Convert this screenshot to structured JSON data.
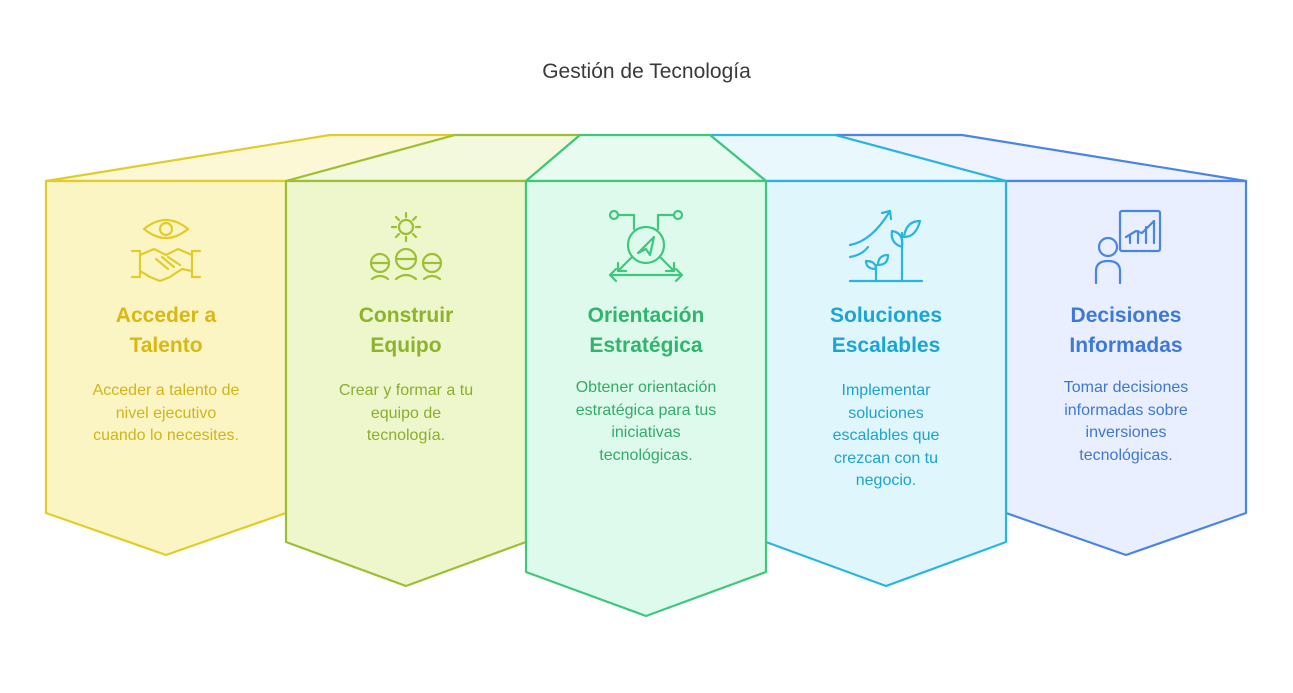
{
  "title": "Gestión de Tecnología",
  "cards": [
    {
      "title_lines": [
        "Acceder a",
        "Talento"
      ],
      "desc_lines": [
        "Acceder a talento de",
        "nivel ejecutivo",
        "cuando lo necesites."
      ],
      "icon": "handshake-eye-icon",
      "stroke": "#e2cc2a",
      "fill": "#fbf5c4",
      "top_fill": "#fcf8d6",
      "title_color": "#d9b814",
      "desc_color": "#d2b41a"
    },
    {
      "title_lines": [
        "Construir",
        "Equipo"
      ],
      "desc_lines": [
        "Crear y formar a tu",
        "equipo de",
        "tecnología."
      ],
      "icon": "team-gear-icon",
      "stroke": "#9cbf34",
      "fill": "#eef6cc",
      "top_fill": "#f3f9dc",
      "title_color": "#8db32a",
      "desc_color": "#8aae2e"
    },
    {
      "title_lines": [
        "Orientación",
        "Estratégica"
      ],
      "desc_lines": [
        "Obtener orientación",
        "estratégica para tus",
        "iniciativas",
        "tecnológicas."
      ],
      "icon": "compass-arrows-icon",
      "stroke": "#3ec77d",
      "fill": "#defaec",
      "top_fill": "#e7fbf1",
      "title_color": "#2fb56c",
      "desc_color": "#33ab6a"
    },
    {
      "title_lines": [
        "Soluciones",
        "Escalables"
      ],
      "desc_lines": [
        "Implementar",
        "soluciones",
        "escalables que",
        "crezcan con tu",
        "negocio."
      ],
      "icon": "growth-plant-icon",
      "stroke": "#2ab5e0",
      "fill": "#e0f6fd",
      "top_fill": "#e9f8fd",
      "title_color": "#1ca4d6",
      "desc_color": "#1ea2cf"
    },
    {
      "title_lines": [
        "Decisiones",
        "Informadas"
      ],
      "desc_lines": [
        "Tomar decisiones",
        "informadas sobre",
        "inversiones",
        "tecnológicas."
      ],
      "icon": "presenter-chart-icon",
      "stroke": "#4a84e6",
      "fill": "#e9efff",
      "top_fill": "#eef3ff",
      "title_color": "#3e78dd",
      "desc_color": "#3f77d6"
    }
  ]
}
